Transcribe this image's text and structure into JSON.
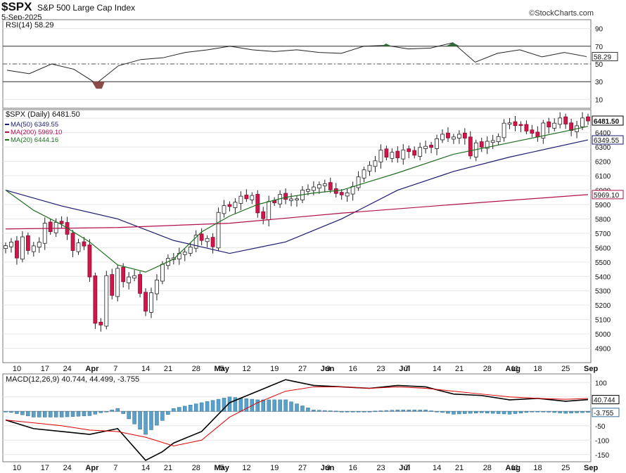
{
  "header": {
    "symbol": "$SPX",
    "name": "S&P 500 Large Cap Index",
    "date": "5-Sep-2025",
    "brand": "©StockCharts.com"
  },
  "chart_data": [
    {
      "type": "line",
      "title": "RSI(14) 58.29",
      "ylim": [
        0,
        100
      ],
      "y_ticks": [
        10,
        30,
        50,
        70,
        90
      ],
      "reference_lines": [
        30,
        50,
        70
      ],
      "last_value": "58.29",
      "x": [
        "Mar 10",
        "Mar 17",
        "Mar 24",
        "Mar 31",
        "Apr 7",
        "Apr 14",
        "Apr 21",
        "Apr 28",
        "May 5",
        "May 12",
        "May 19",
        "May 27",
        "Jun 2",
        "Jun 9",
        "Jun 16",
        "Jun 23",
        "Jul 1",
        "Jul 7",
        "Jul 14",
        "Jul 21",
        "Jul 28",
        "Aug 4",
        "Aug 11",
        "Aug 18",
        "Aug 25",
        "Sep 2",
        "Sep 5"
      ],
      "values": [
        43,
        39,
        50,
        44,
        28,
        48,
        55,
        57,
        63,
        66,
        70,
        66,
        64,
        66,
        63,
        62,
        70,
        71,
        67,
        68,
        74,
        52,
        62,
        66,
        58,
        63,
        58.29
      ]
    },
    {
      "type": "candlestick",
      "title": "$SPX (Daily) 6481.50",
      "ylim": [
        4800,
        6560
      ],
      "y_ticks": [
        4900,
        5000,
        5100,
        5200,
        5300,
        5400,
        5500,
        5600,
        5700,
        5800,
        5900,
        6000,
        6100,
        6200,
        6300,
        6400,
        6500
      ],
      "last_value": "6481.50",
      "ma_labels": {
        "ma50": "6349.55",
        "ma200": "5969.10"
      },
      "series": [
        {
          "name": "$SPX (Daily) 6481.50",
          "color": "#000000",
          "values_close": [
            5614,
            5639,
            5528,
            5675,
            5580,
            5612,
            5638,
            5770,
            5711,
            5776,
            5767,
            5693,
            5580,
            5633,
            5611,
            5396,
            5074,
            5062,
            5405,
            5268,
            5456,
            5363,
            5396,
            5405,
            5282,
            5158,
            5287,
            5375,
            5484,
            5525,
            5529,
            5560,
            5569,
            5604,
            5687,
            5650,
            5664,
            5606,
            5845,
            5892,
            5886,
            5916,
            5958,
            5940,
            5963,
            5842,
            5802,
            5921,
            5912,
            5970,
            5936,
            5939,
            5940,
            6000,
            6006,
            6022,
            6038,
            6045,
            6002,
            5977,
            5967,
            5981,
            6025,
            6092,
            6141,
            6173,
            6204,
            6279,
            6229,
            6263,
            6225,
            6280,
            6268,
            6243,
            6297,
            6305,
            6297,
            6358,
            6389,
            6363,
            6370,
            6389,
            6362,
            6238,
            6329,
            6299,
            6340,
            6345,
            6373,
            6466,
            6468,
            6449,
            6449,
            6411,
            6396,
            6370,
            6467,
            6439,
            6466,
            6502,
            6460,
            6415,
            6448,
            6502,
            6481.5
          ]
        },
        {
          "name": "MA(50) 6349.55",
          "color": "#1a1a70",
          "x_idx": [
            0,
            10,
            20,
            30,
            40,
            50,
            60,
            70,
            80,
            90,
            104
          ],
          "values": [
            6000,
            5890,
            5800,
            5650,
            5560,
            5640,
            5800,
            6000,
            6130,
            6230,
            6349.55
          ]
        },
        {
          "name": "MA(200) 5969.10",
          "color": "#b0104c",
          "x_idx": [
            0,
            20,
            40,
            60,
            80,
            104
          ],
          "values": [
            5730,
            5740,
            5770,
            5840,
            5900,
            5969.1
          ]
        },
        {
          "name": "MA(20) 6444.16",
          "color": "#1e6e1e",
          "x_idx": [
            0,
            5,
            10,
            15,
            20,
            25,
            30,
            35,
            40,
            45,
            50,
            55,
            60,
            70,
            80,
            90,
            100,
            104
          ],
          "values": [
            6000,
            5860,
            5760,
            5640,
            5480,
            5430,
            5520,
            5710,
            5820,
            5900,
            5950,
            5980,
            6000,
            6120,
            6250,
            6330,
            6410,
            6444.16
          ]
        }
      ]
    },
    {
      "type": "line",
      "title": "MACD(12,26,9) 40.744, 44.499, -3.755",
      "ylim": [
        -175,
        130
      ],
      "y_ticks": [
        -150,
        -100,
        -50,
        0,
        50,
        100
      ],
      "last_values": [
        "40.744",
        "-3.755"
      ],
      "series": [
        {
          "name": "MACD",
          "color": "#000000",
          "x_idx": [
            0,
            5,
            10,
            15,
            20,
            25,
            28,
            30,
            35,
            40,
            45,
            50,
            55,
            60,
            65,
            70,
            75,
            80,
            85,
            90,
            95,
            100,
            104
          ],
          "values": [
            -30,
            -60,
            -70,
            -80,
            -60,
            -170,
            -140,
            -110,
            -70,
            30,
            70,
            110,
            90,
            85,
            80,
            90,
            85,
            60,
            55,
            40,
            45,
            35,
            40.744
          ]
        },
        {
          "name": "Signal",
          "color": "#dd0000",
          "x_idx": [
            0,
            5,
            10,
            15,
            20,
            25,
            30,
            35,
            40,
            45,
            50,
            55,
            60,
            65,
            70,
            75,
            80,
            85,
            90,
            95,
            100,
            104
          ],
          "values": [
            -30,
            -40,
            -50,
            -65,
            -70,
            -90,
            -120,
            -100,
            -20,
            30,
            70,
            85,
            85,
            80,
            85,
            80,
            70,
            60,
            50,
            45,
            42,
            44.499
          ]
        },
        {
          "name": "Histogram",
          "color": "#5ba0c8",
          "values": [
            -3.755
          ]
        }
      ]
    }
  ],
  "x_axis": [
    "10",
    "17",
    "24",
    "Apr",
    "7",
    "14",
    "21",
    "28",
    "May",
    "5",
    "12",
    "19",
    "27",
    "Jun",
    "9",
    "16",
    "23",
    "Jul",
    "7",
    "14",
    "21",
    "28",
    "Aug",
    "11",
    "18",
    "25",
    "Sep"
  ]
}
